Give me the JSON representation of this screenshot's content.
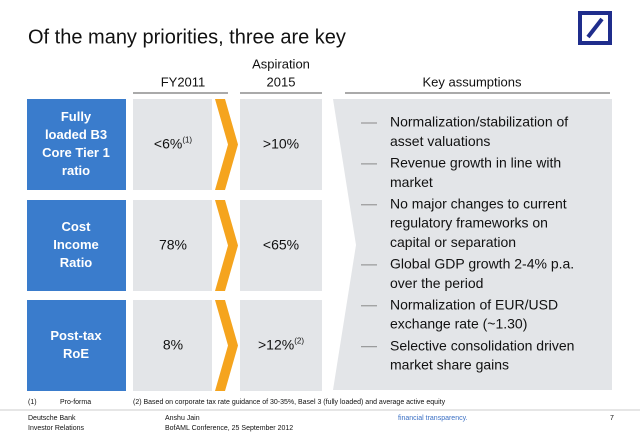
{
  "header": {
    "title": "Of the many priorities, three are key"
  },
  "columns": {
    "fy2011": "FY2011",
    "aspiration": [
      "Aspiration",
      "2015"
    ],
    "assumptions": "Key assumptions"
  },
  "rows": [
    {
      "label": [
        "Fully",
        "loaded B3",
        "Core Tier 1",
        "ratio"
      ],
      "fy2011": {
        "value": "<6%",
        "note": "(1)"
      },
      "aspiration": {
        "value": ">10%"
      }
    },
    {
      "label": [
        "Cost",
        "Income",
        "Ratio"
      ],
      "fy2011": {
        "value": "78%"
      },
      "aspiration": {
        "value": "<65%"
      }
    },
    {
      "label": [
        "Post-tax",
        "RoE"
      ],
      "fy2011": {
        "value": "8%"
      },
      "aspiration": {
        "value": ">12%",
        "note": "(2)"
      }
    }
  ],
  "assumptions": [
    [
      "Normalization/stabilization of",
      "asset valuations"
    ],
    [
      "Revenue growth in line with",
      "market"
    ],
    [
      "No major changes to current",
      "regulatory frameworks on",
      "capital or separation"
    ],
    [
      "Global GDP growth 2-4% p.a.",
      "over the period"
    ],
    [
      "Normalization of EUR/USD",
      "exchange rate (~1.30)"
    ],
    [
      "Selective consolidation driven",
      "market share gains"
    ]
  ],
  "footnotes": [
    {
      "marker": "(1)",
      "text": "Pro-forma"
    },
    {
      "text": "(2) Based on corporate tax rate guidance of 30-35%, Basel 3 (fully loaded) and average active equity"
    }
  ],
  "footer": {
    "company": [
      "Deutsche Bank",
      "Investor Relations"
    ],
    "presenter": [
      "Anshu Jain",
      "BofAML Conference, 25 September 2012"
    ],
    "tagline": "financial transparency.",
    "page": "7"
  }
}
